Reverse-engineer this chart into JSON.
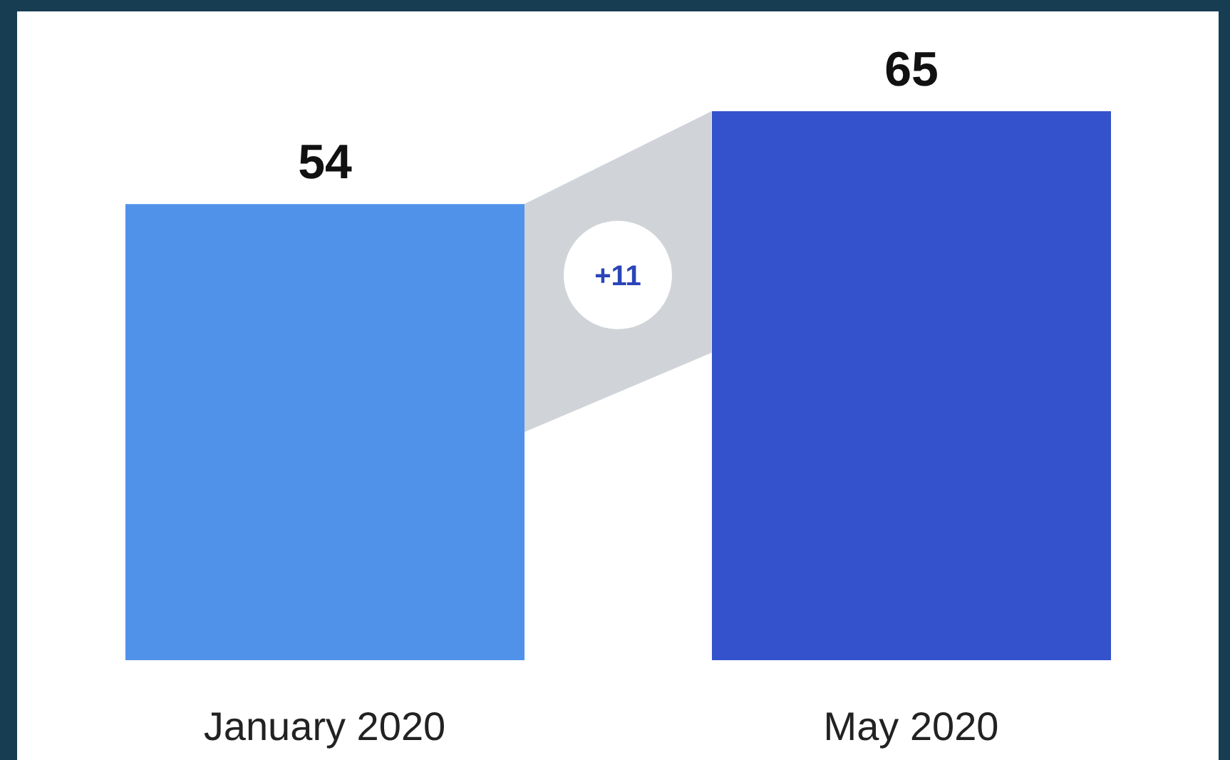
{
  "chart_data": {
    "type": "bar",
    "categories": [
      "January 2020",
      "May 2020"
    ],
    "values": [
      54,
      65
    ],
    "colors": [
      "#5092ea",
      "#3452cc"
    ],
    "data_labels": true,
    "annotations": [
      "+11"
    ]
  }
}
